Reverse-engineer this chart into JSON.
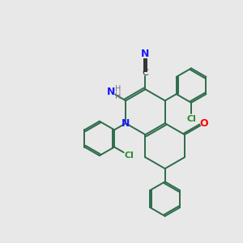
{
  "background_color": "#e8e8e8",
  "bond_color": "#2d6b4a",
  "atom_colors": {
    "N": "#1a1aff",
    "O": "#ff0000",
    "Cl": "#2d8c2d",
    "C_label": "#333333",
    "N_label": "#1a1aff",
    "H": "#777777"
  },
  "lw": 1.4
}
